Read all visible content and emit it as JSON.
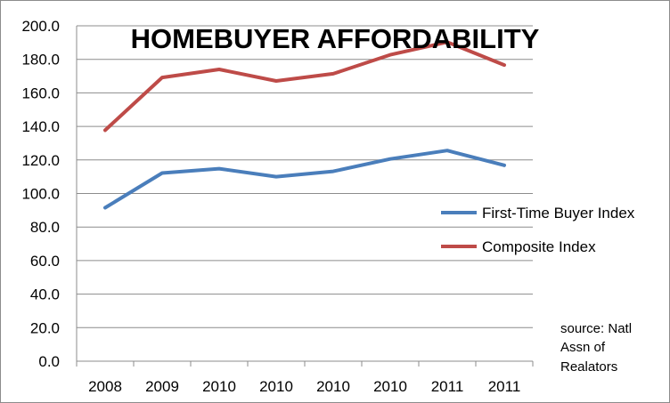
{
  "chart_data": {
    "type": "line",
    "title": "HOMEBUYER AFFORDABILITY",
    "categories": [
      "2008",
      "2009",
      "2010",
      "2010",
      "2010",
      "2010",
      "2011",
      "2011"
    ],
    "series": [
      {
        "name": "First-Time Buyer Index",
        "color": "#4a7ebb",
        "values": [
          91.5,
          112.2,
          114.8,
          110.0,
          113.2,
          120.6,
          125.6,
          116.8
        ]
      },
      {
        "name": "Composite Index",
        "color": "#be4b48",
        "values": [
          137.7,
          169.2,
          174.0,
          167.1,
          171.4,
          182.7,
          190.3,
          176.6
        ]
      }
    ],
    "ylim": [
      0,
      200
    ],
    "yticks": [
      "0.0",
      "20.0",
      "40.0",
      "60.0",
      "80.0",
      "100.0",
      "120.0",
      "140.0",
      "160.0",
      "180.0",
      "200.0"
    ],
    "grid": true,
    "legend_position": "right",
    "xlabel": "",
    "ylabel": ""
  },
  "source_note": [
    "source: Natl",
    "Assn of",
    "Realators"
  ]
}
